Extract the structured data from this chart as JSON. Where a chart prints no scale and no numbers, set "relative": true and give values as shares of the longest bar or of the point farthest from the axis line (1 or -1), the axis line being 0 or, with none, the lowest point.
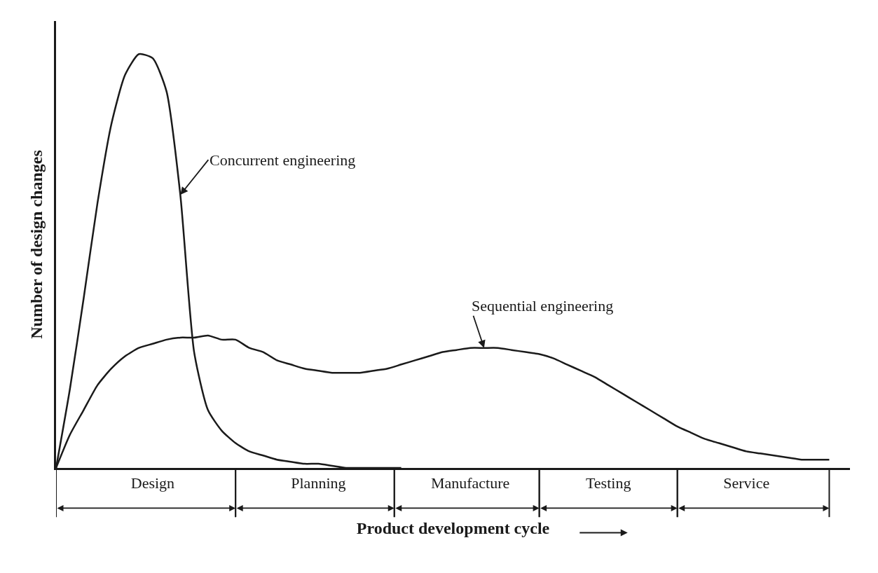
{
  "chart_data": {
    "type": "line",
    "relative": true,
    "xlabel": "Product development cycle",
    "ylabel": "Number of design changes",
    "legend": false,
    "tick_labels": "x",
    "marker": "none",
    "line_style": "solid",
    "categories": [
      null,
      null,
      null,
      null,
      null,
      null,
      null,
      "Design",
      null,
      null,
      null,
      null,
      null,
      null,
      null,
      null,
      null,
      null,
      null,
      "Planning",
      null,
      null,
      null,
      null,
      null,
      null,
      null,
      null,
      null,
      null,
      "Manufacture",
      null,
      null,
      null,
      null,
      null,
      null,
      null,
      null,
      null,
      "Testing",
      null,
      null,
      null,
      null,
      null,
      null,
      null,
      null,
      null,
      "Service",
      null,
      null,
      null,
      null,
      null,
      null
    ],
    "series": [
      {
        "name": "Concurrent engineering",
        "color": "#1a1a1a",
        "values": [
          0,
          0.19,
          0.41,
          0.64,
          0.83,
          0.95,
          1.0,
          0.99,
          0.91,
          0.66,
          0.28,
          0.14,
          0.09,
          0.06,
          0.04,
          0.03,
          0.02,
          0.015,
          0.01,
          0.01,
          0.005,
          0,
          0,
          0,
          0,
          0,
          null,
          null,
          null,
          null,
          null,
          null,
          null,
          null,
          null,
          null,
          null,
          null,
          null,
          null,
          null,
          null,
          null,
          null,
          null,
          null,
          null,
          null,
          null,
          null,
          null,
          null,
          null,
          null,
          null,
          null,
          null
        ]
      },
      {
        "name": "Sequential engineering",
        "color": "#1a1a1a",
        "values": [
          0,
          0.08,
          0.14,
          0.2,
          0.24,
          0.27,
          0.29,
          0.3,
          0.31,
          0.315,
          0.315,
          0.32,
          0.31,
          0.31,
          0.29,
          0.28,
          0.26,
          0.25,
          0.24,
          0.235,
          0.23,
          0.23,
          0.23,
          0.235,
          0.24,
          0.25,
          0.26,
          0.27,
          0.28,
          0.285,
          0.29,
          0.29,
          0.29,
          0.285,
          0.28,
          0.275,
          0.265,
          0.25,
          0.235,
          0.22,
          0.2,
          0.18,
          0.16,
          0.14,
          0.12,
          0.1,
          0.085,
          0.07,
          0.06,
          0.05,
          0.04,
          0.035,
          0.03,
          0.025,
          0.02,
          0.02,
          0.02
        ]
      }
    ]
  }
}
